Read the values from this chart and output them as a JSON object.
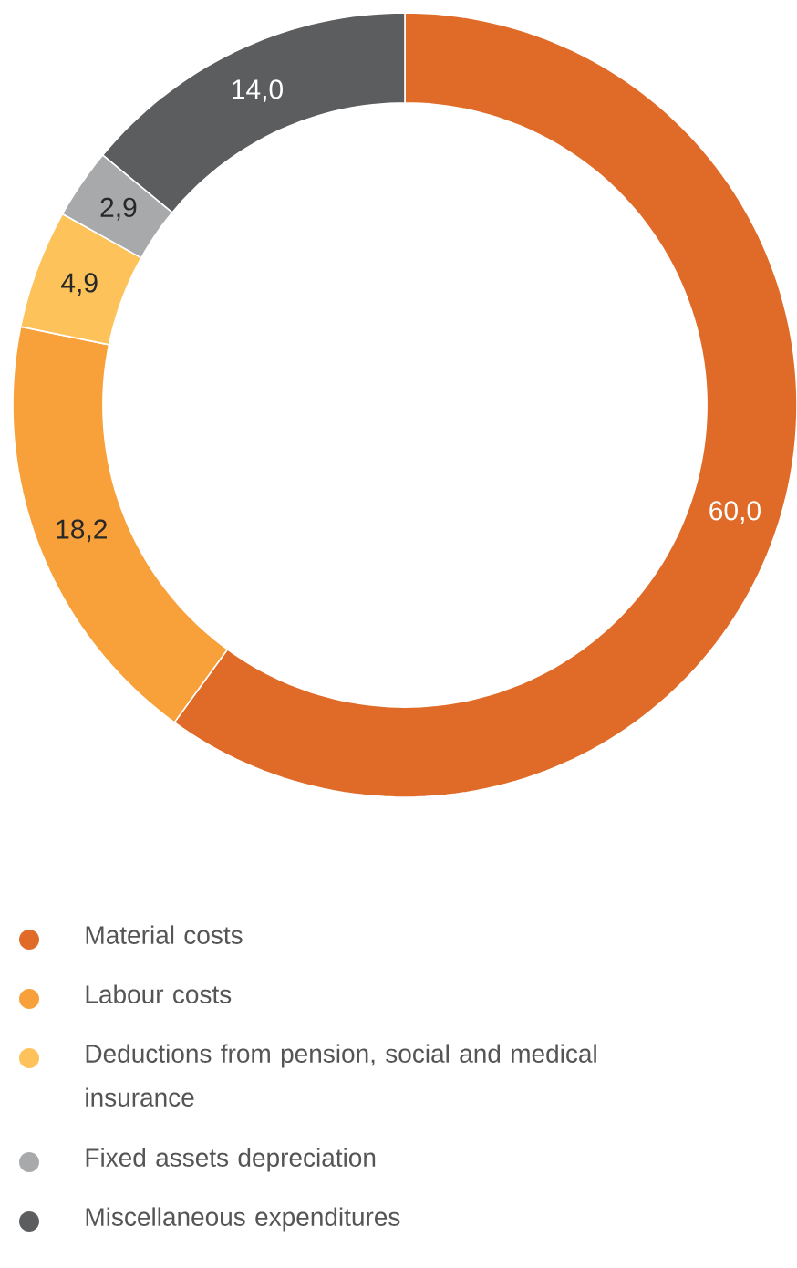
{
  "chart_data": {
    "type": "donut",
    "categories": [
      "Material costs",
      "Labour costs",
      "Deductions from pension, social and medical insurance",
      "Fixed assets depreciation",
      "Miscellaneous expenditures"
    ],
    "values": [
      60.0,
      18.2,
      4.9,
      2.9,
      14.0
    ],
    "value_labels": [
      "60,0",
      "18,2",
      "4,9",
      "2,9",
      "14,0"
    ],
    "colors": [
      "#e06b28",
      "#f8a03a",
      "#fdc25a",
      "#a7a9ab",
      "#5b5d5f"
    ],
    "legend": "bottom"
  }
}
